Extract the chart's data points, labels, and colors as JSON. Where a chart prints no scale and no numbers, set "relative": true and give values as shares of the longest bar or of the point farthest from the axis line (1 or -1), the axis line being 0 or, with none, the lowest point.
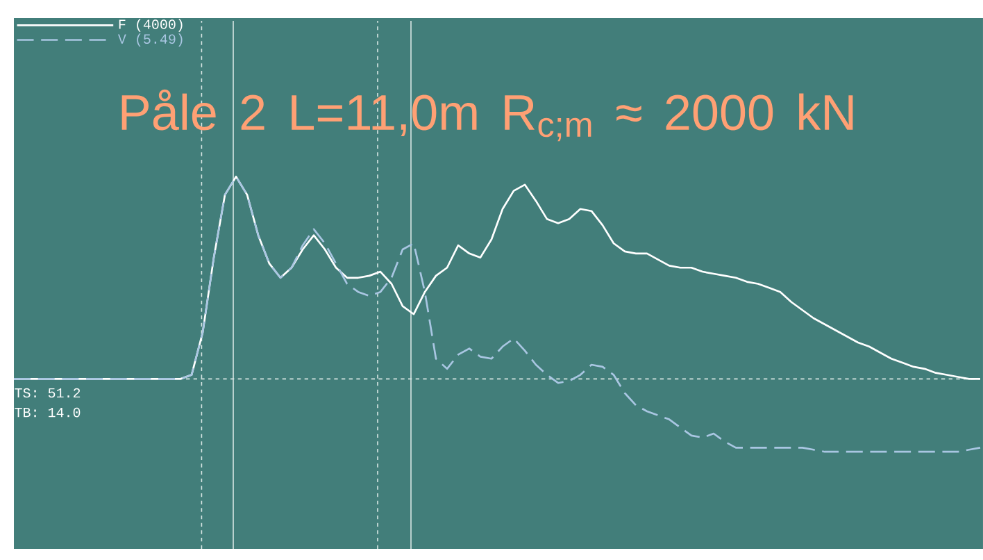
{
  "chart_data": {
    "type": "line",
    "relative": true,
    "title": "Påle 2    L=11,0m    R$_{c;m}$ ≈ 2000 kN",
    "legend": "top left",
    "line_style": "solid",
    "categories": [
      null,
      null,
      null,
      null,
      null,
      null,
      null,
      null,
      null,
      null,
      null,
      null,
      null,
      null,
      null,
      null,
      null,
      null,
      null,
      null,
      null,
      null,
      null,
      null,
      null,
      null,
      null,
      null,
      null,
      null,
      null,
      null,
      null,
      null,
      null,
      null,
      null,
      null,
      null,
      null,
      null,
      null,
      null,
      null,
      null,
      null,
      null,
      null,
      null,
      null,
      null,
      null,
      null,
      null,
      null,
      null,
      null,
      null,
      null,
      null,
      null,
      null,
      null,
      null,
      null,
      null,
      null,
      null,
      null,
      null,
      null,
      null,
      null,
      null,
      null,
      null,
      null,
      null,
      null,
      null,
      null,
      null,
      null,
      null,
      null,
      null,
      null,
      null
    ],
    "series": [
      {
        "name": "F (4000)",
        "color": "#ffffff",
        "values": [
          0,
          0,
          0,
          0,
          0,
          0,
          0,
          0,
          0,
          0,
          0,
          0,
          0,
          0,
          0,
          0,
          0.02,
          0.23,
          0.6,
          0.91,
          1.0,
          0.91,
          0.71,
          0.57,
          0.5,
          0.55,
          0.64,
          0.71,
          0.64,
          0.55,
          0.5,
          0.5,
          0.51,
          0.53,
          0.47,
          0.36,
          0.32,
          0.43,
          0.51,
          0.55,
          0.66,
          0.62,
          0.6,
          0.69,
          0.84,
          0.93,
          0.96,
          0.88,
          0.79,
          0.77,
          0.79,
          0.84,
          0.83,
          0.76,
          0.67,
          0.63,
          0.62,
          0.62,
          0.59,
          0.56,
          0.55,
          0.55,
          0.53,
          0.52,
          0.51,
          0.5,
          0.48,
          0.47,
          0.45,
          0.43,
          0.38,
          0.34,
          0.3,
          0.27,
          0.24,
          0.21,
          0.18,
          0.16,
          0.13,
          0.1,
          0.08,
          0.06,
          0.05,
          0.03,
          0.02,
          0.01,
          0,
          0
        ]
      },
      {
        "name": "V (5.49)",
        "color": "#a9c6e2",
        "line_style": "dashed",
        "values": [
          0,
          0,
          0,
          0,
          0,
          0,
          0,
          0,
          0,
          0,
          0,
          0,
          0,
          0,
          0,
          0,
          0.02,
          0.23,
          0.6,
          0.91,
          1.0,
          0.91,
          0.71,
          0.57,
          0.5,
          0.55,
          0.66,
          0.74,
          0.67,
          0.57,
          0.47,
          0.43,
          0.41,
          0.43,
          0.5,
          0.64,
          0.67,
          0.43,
          0.1,
          0.05,
          0.12,
          0.15,
          0.11,
          0.1,
          0.16,
          0.2,
          0.14,
          0.07,
          0.02,
          -0.02,
          -0.01,
          0.02,
          0.07,
          0.06,
          0.02,
          -0.07,
          -0.13,
          -0.16,
          -0.18,
          -0.2,
          -0.24,
          -0.28,
          -0.29,
          -0.27,
          -0.31,
          -0.34,
          -0.34,
          -0.34,
          -0.34,
          -0.34,
          -0.34,
          -0.34,
          -0.35,
          -0.36,
          -0.36,
          -0.36,
          -0.36,
          -0.36,
          -0.36,
          -0.36,
          -0.36,
          -0.36,
          -0.36,
          -0.36,
          -0.36,
          -0.36,
          -0.35,
          -0.34
        ]
      }
    ],
    "ref_lines": [
      {
        "axis": "y",
        "value": 0,
        "line_style": "dotted",
        "color": "#d8e6e4"
      }
    ],
    "annotations": [
      "TS: 51.2",
      "TB: 14.0"
    ]
  }
}
